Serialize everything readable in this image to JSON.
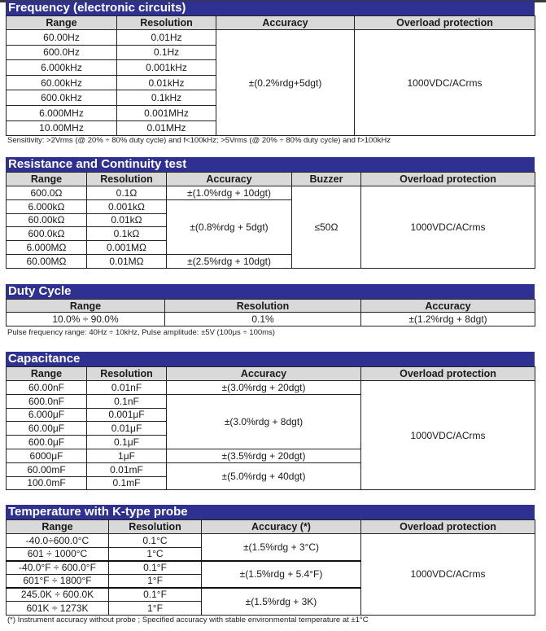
{
  "frequency": {
    "title": "Frequency (electronic circuits)",
    "headers": [
      "Range",
      "Resolution",
      "Accuracy",
      "Overload protection"
    ],
    "rows": [
      [
        "60.00Hz",
        "0.01Hz"
      ],
      [
        "600.0Hz",
        "0.1Hz"
      ],
      [
        "6.000kHz",
        "0.001kHz"
      ],
      [
        "60.00kHz",
        "0.01kHz"
      ],
      [
        "600.0kHz",
        "0.1kHz"
      ],
      [
        "6.000MHz",
        "0.001MHz"
      ],
      [
        "10.00MHz",
        "0.01MHz"
      ]
    ],
    "accuracy": "±(0.2%rdg+5dgt)",
    "overload": "1000VDC/ACrms",
    "note": "Sensitivity: >2Vrms (@ 20% ÷ 80% duty cycle) and f<100kHz; >5Vrms (@ 20% ÷ 80% duty cycle) and f>100kHz"
  },
  "resistance": {
    "title": "Resistance and Continuity test",
    "headers": [
      "Range",
      "Resolution",
      "Accuracy",
      "Buzzer",
      "Overload protection"
    ],
    "rows": [
      [
        "600.0Ω",
        "0.1Ω"
      ],
      [
        "6.000kΩ",
        "0.001kΩ"
      ],
      [
        "60.00kΩ",
        "0.01kΩ"
      ],
      [
        "600.0kΩ",
        "0.1kΩ"
      ],
      [
        "6.000MΩ",
        "0.001MΩ"
      ],
      [
        "60.00MΩ",
        "0.01MΩ"
      ]
    ],
    "accuracy": [
      "±(1.0%rdg + 10dgt)",
      "±(0.8%rdg + 5dgt)",
      "±(2.5%rdg + 10dgt)"
    ],
    "buzzer": "≤50Ω",
    "overload": "1000VDC/ACrms"
  },
  "duty_cycle": {
    "title": "Duty Cycle",
    "headers": [
      "Range",
      "Resolution",
      "Accuracy"
    ],
    "row": [
      "10.0% ÷ 90.0%",
      "0.1%",
      "±(1.2%rdg + 8dgt)"
    ],
    "note": "Pulse frequency range: 40Hz ÷ 10kHz, Pulse amplitude: ±5V (100μs ÷ 100ms)"
  },
  "capacitance": {
    "title": "Capacitance",
    "headers": [
      "Range",
      "Resolution",
      "Accuracy",
      "Overload protection"
    ],
    "rows": [
      [
        "60.00nF",
        "0.01nF"
      ],
      [
        "600.0nF",
        "0.1nF"
      ],
      [
        "6.000μF",
        "0.001μF"
      ],
      [
        "60.00μF",
        "0.01μF"
      ],
      [
        "600.0μF",
        "0.1μF"
      ],
      [
        "6000μF",
        "1μF"
      ],
      [
        "60.00mF",
        "0.01mF"
      ],
      [
        "100.0mF",
        "0.1mF"
      ]
    ],
    "accuracy": [
      "±(3.0%rdg + 20dgt)",
      "±(3.0%rdg + 8dgt)",
      "±(3.5%rdg + 20dgt)",
      "±(5.0%rdg + 40dgt)"
    ],
    "overload": "1000VDC/ACrms"
  },
  "temperature": {
    "title": "Temperature with K-type probe",
    "headers": [
      "Range",
      "Resolution",
      "Accuracy (*)",
      "Overload protection"
    ],
    "rows": [
      [
        "-40.0÷600.0°C",
        "0.1°C"
      ],
      [
        "601 ÷ 1000°C",
        "1°C"
      ],
      [
        "-40.0°F ÷  600.0°F",
        "0.1°F"
      ],
      [
        "601°F ÷  1800°F",
        "1°F"
      ],
      [
        "245.0K ÷  600.0K",
        "0.1°F"
      ],
      [
        "601K ÷  1273K",
        "1°F"
      ]
    ],
    "accuracy": [
      "±(1.5%rdg + 3°C)",
      "±(1.5%rdg + 5.4°F)",
      "±(1.5%rdg + 3K)"
    ],
    "overload": "1000VDC/ACrms",
    "note": "(*) Instrument accuracy without probe ; Specified accuracy with stable environmental temperature at ±1°C"
  }
}
